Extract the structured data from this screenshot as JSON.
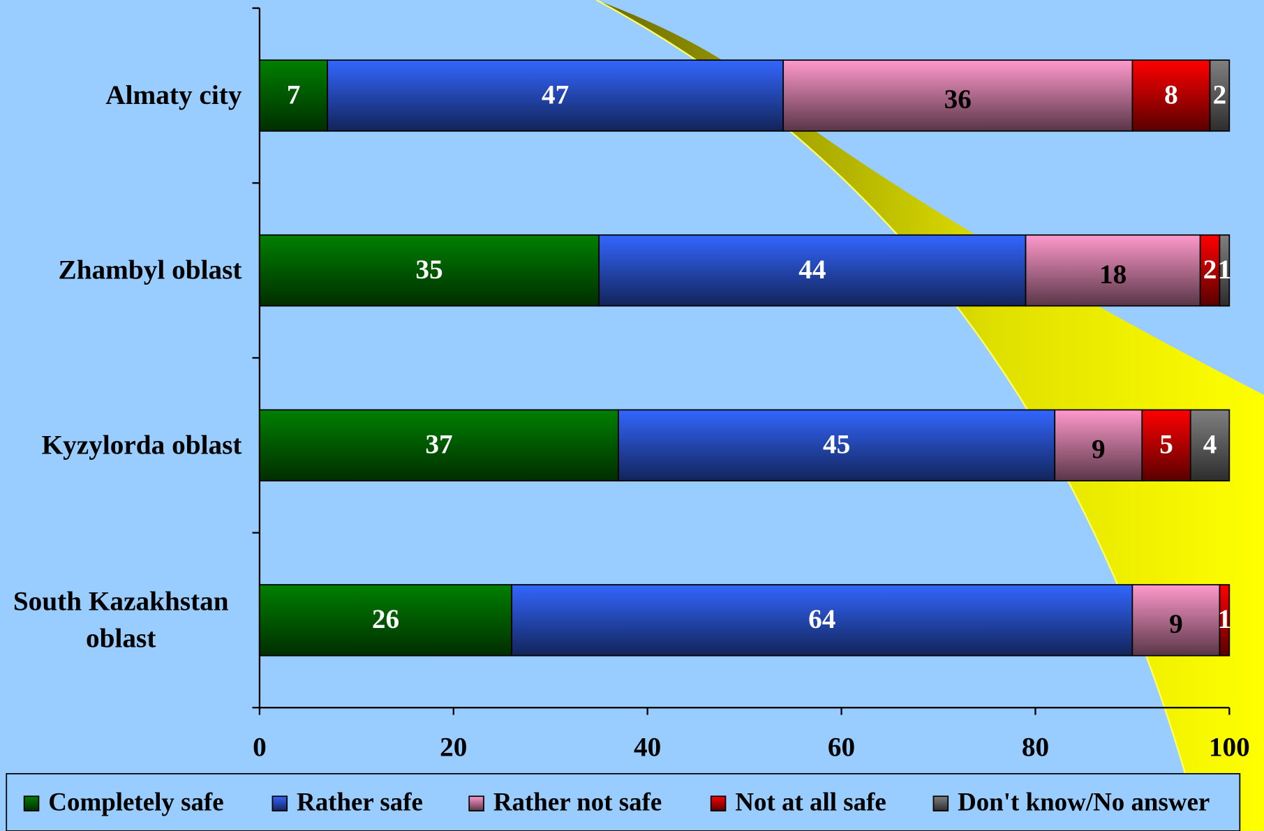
{
  "chart_data": {
    "type": "stacked-barh",
    "categories": [
      "Almaty city",
      "Zhambyl oblast",
      "Kyzylorda oblast",
      "South Kazakhstan oblast"
    ],
    "series": [
      {
        "name": "Completely safe",
        "color": "#008000",
        "values": [
          7,
          35,
          37,
          26
        ]
      },
      {
        "name": "Rather safe",
        "color": "#3366ff",
        "values": [
          47,
          44,
          45,
          64
        ]
      },
      {
        "name": "Rather not safe",
        "color": "#ff99cc",
        "values": [
          36,
          18,
          9,
          9
        ]
      },
      {
        "name": "Not at all safe",
        "color": "#ff0000",
        "values": [
          8,
          2,
          5,
          1
        ]
      },
      {
        "name": "Don't know/No answer",
        "color": "#808080",
        "values": [
          2,
          1,
          4,
          null
        ]
      }
    ],
    "xlim": [
      0,
      100
    ],
    "xticks": [
      0,
      20,
      40,
      60,
      80,
      100
    ],
    "legend": "bottom"
  }
}
